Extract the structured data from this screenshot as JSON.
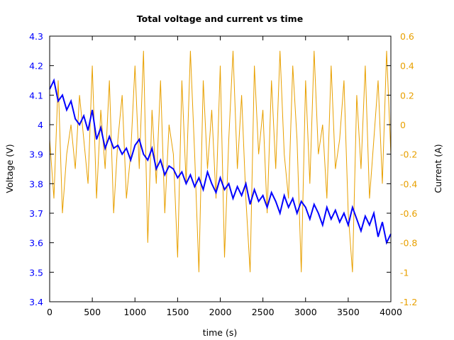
{
  "chart_data": {
    "type": "line",
    "title": "Total voltage and current vs time",
    "xlabel": "time (s)",
    "ylabel": "Voltage (V)",
    "y2label": "Current (A)",
    "xlim": [
      0,
      4000
    ],
    "ylim": [
      3.4,
      4.3
    ],
    "y2lim": [
      -1.2,
      0.6
    ],
    "xticks": [
      0,
      500,
      1000,
      1500,
      2000,
      2500,
      3000,
      3500,
      4000
    ],
    "yticks": [
      "3.4",
      "3.5",
      "3.6",
      "3.7",
      "3.8",
      "3.9",
      "4",
      "4.1",
      "4.2",
      "4.3"
    ],
    "y2ticks": [
      "-1.2",
      "-1",
      "-0.8",
      "-0.6",
      "-0.4",
      "-0.2",
      "0",
      "0.2",
      "0.4",
      "0.6"
    ],
    "grid": false,
    "colors": {
      "voltage": "#0000ff",
      "current": "#e8a000",
      "left_axis": "#0000ff",
      "right_axis": "#e8a000"
    },
    "x": [
      0,
      50,
      100,
      150,
      200,
      250,
      300,
      350,
      400,
      450,
      500,
      550,
      600,
      650,
      700,
      750,
      800,
      850,
      900,
      950,
      1000,
      1050,
      1100,
      1150,
      1200,
      1250,
      1300,
      1350,
      1400,
      1450,
      1500,
      1550,
      1600,
      1650,
      1700,
      1750,
      1800,
      1850,
      1900,
      1950,
      2000,
      2050,
      2100,
      2150,
      2200,
      2250,
      2300,
      2350,
      2400,
      2450,
      2500,
      2550,
      2600,
      2650,
      2700,
      2750,
      2800,
      2850,
      2900,
      2950,
      3000,
      3050,
      3100,
      3150,
      3200,
      3250,
      3300,
      3350,
      3400,
      3450,
      3500,
      3550,
      3600,
      3650,
      3700,
      3750,
      3800,
      3850,
      3900,
      3950,
      4000
    ],
    "series": [
      {
        "axis": "right",
        "color_key": "current",
        "values": [
          -0.1,
          -0.5,
          0.3,
          -0.6,
          -0.2,
          0.0,
          -0.3,
          0.2,
          -0.1,
          -0.4,
          0.4,
          -0.5,
          0.1,
          -0.3,
          0.3,
          -0.6,
          -0.1,
          0.2,
          -0.5,
          -0.2,
          0.4,
          -0.3,
          0.5,
          -0.8,
          0.1,
          -0.4,
          0.3,
          -0.6,
          0.0,
          -0.2,
          -0.9,
          0.3,
          -0.4,
          0.5,
          -0.2,
          -1.0,
          0.3,
          -0.3,
          0.1,
          -0.5,
          0.4,
          -0.9,
          -0.1,
          0.5,
          -0.3,
          0.2,
          -0.5,
          -1.0,
          0.4,
          -0.2,
          0.1,
          -0.6,
          0.3,
          -0.3,
          0.5,
          -0.2,
          -0.5,
          0.4,
          -0.1,
          -1.0,
          0.3,
          -0.4,
          0.5,
          -0.2,
          0.0,
          -0.5,
          0.4,
          -0.3,
          -0.1,
          0.3,
          -0.6,
          -1.0,
          0.2,
          -0.3,
          0.4,
          -0.5,
          -0.1,
          0.3,
          -0.4,
          0.5,
          -0.2
        ]
      },
      {
        "axis": "left",
        "color_key": "voltage",
        "values": [
          4.12,
          4.15,
          4.08,
          4.1,
          4.05,
          4.08,
          4.02,
          4.0,
          4.03,
          3.98,
          4.05,
          3.95,
          3.99,
          3.92,
          3.96,
          3.92,
          3.93,
          3.9,
          3.92,
          3.88,
          3.93,
          3.95,
          3.9,
          3.88,
          3.92,
          3.85,
          3.88,
          3.83,
          3.86,
          3.85,
          3.82,
          3.84,
          3.8,
          3.83,
          3.79,
          3.82,
          3.78,
          3.84,
          3.8,
          3.77,
          3.82,
          3.78,
          3.8,
          3.75,
          3.79,
          3.76,
          3.8,
          3.73,
          3.78,
          3.74,
          3.76,
          3.72,
          3.77,
          3.74,
          3.7,
          3.76,
          3.72,
          3.75,
          3.7,
          3.74,
          3.72,
          3.68,
          3.73,
          3.7,
          3.66,
          3.72,
          3.68,
          3.71,
          3.67,
          3.7,
          3.66,
          3.72,
          3.68,
          3.64,
          3.69,
          3.66,
          3.7,
          3.62,
          3.67,
          3.6,
          3.63
        ]
      }
    ]
  }
}
